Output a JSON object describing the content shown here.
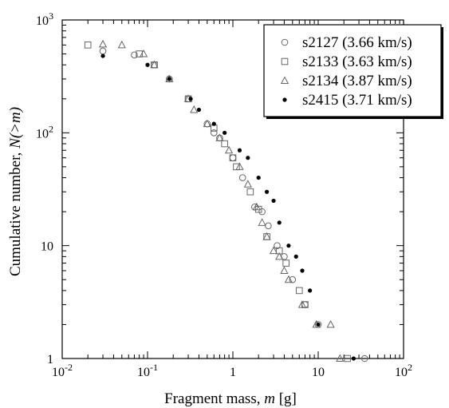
{
  "chart_data": {
    "type": "scatter",
    "xlabel": {
      "text": "Fragment mass, ",
      "var": "m",
      "unit": " [g]"
    },
    "ylabel": {
      "text": "Cumulative number, ",
      "var": "N(>m)"
    },
    "x_scale": "log",
    "y_scale": "log",
    "xlim": [
      0.01,
      100
    ],
    "ylim": [
      1,
      1000
    ],
    "x_ticks": [
      {
        "value": 0.01,
        "base": "10",
        "exp": "-2"
      },
      {
        "value": 0.1,
        "base": "10",
        "exp": "-1"
      },
      {
        "value": 1,
        "base": "1",
        "exp": ""
      },
      {
        "value": 10,
        "base": "10",
        "exp": ""
      },
      {
        "value": 100,
        "base": "10",
        "exp": "2"
      }
    ],
    "y_ticks": [
      {
        "value": 1,
        "base": "1",
        "exp": ""
      },
      {
        "value": 10,
        "base": "10",
        "exp": ""
      },
      {
        "value": 100,
        "base": "10",
        "exp": "2"
      },
      {
        "value": 1000,
        "base": "10",
        "exp": "3"
      }
    ],
    "grid": false,
    "legend_position": "top-right",
    "series": [
      {
        "name": "s2127 (3.66 km/s)",
        "marker": "circle-open",
        "points": [
          [
            0.03,
            530
          ],
          [
            0.07,
            490
          ],
          [
            0.12,
            400
          ],
          [
            0.18,
            300
          ],
          [
            0.3,
            200
          ],
          [
            0.5,
            120
          ],
          [
            0.6,
            100
          ],
          [
            0.7,
            90
          ],
          [
            1.0,
            60
          ],
          [
            1.3,
            40
          ],
          [
            1.8,
            22
          ],
          [
            2.2,
            20
          ],
          [
            2.6,
            15
          ],
          [
            3.3,
            10
          ],
          [
            4.0,
            8
          ],
          [
            5.0,
            5
          ],
          [
            7.0,
            3
          ],
          [
            10,
            2
          ],
          [
            35,
            1
          ]
        ]
      },
      {
        "name": "s2133 (3.63 km/s)",
        "marker": "square-open",
        "points": [
          [
            0.02,
            600
          ],
          [
            0.08,
            500
          ],
          [
            0.12,
            400
          ],
          [
            0.3,
            200
          ],
          [
            0.6,
            110
          ],
          [
            0.8,
            80
          ],
          [
            1.0,
            60
          ],
          [
            1.1,
            50
          ],
          [
            1.6,
            30
          ],
          [
            2.0,
            21
          ],
          [
            2.5,
            12
          ],
          [
            3.5,
            9
          ],
          [
            4.2,
            7
          ],
          [
            6.0,
            4
          ],
          [
            7.0,
            3
          ],
          [
            22,
            1
          ]
        ]
      },
      {
        "name": "s2134 (3.87 km/s)",
        "marker": "triangle-open",
        "points": [
          [
            0.03,
            610
          ],
          [
            0.05,
            600
          ],
          [
            0.09,
            500
          ],
          [
            0.12,
            400
          ],
          [
            0.18,
            300
          ],
          [
            0.3,
            200
          ],
          [
            0.35,
            160
          ],
          [
            0.5,
            120
          ],
          [
            0.7,
            90
          ],
          [
            0.9,
            70
          ],
          [
            1.2,
            50
          ],
          [
            1.5,
            35
          ],
          [
            1.9,
            22
          ],
          [
            2.2,
            16
          ],
          [
            2.5,
            12
          ],
          [
            3.0,
            9
          ],
          [
            3.5,
            8
          ],
          [
            4.0,
            6
          ],
          [
            4.5,
            5
          ],
          [
            6.5,
            3
          ],
          [
            9.5,
            2
          ],
          [
            14,
            2
          ],
          [
            18,
            1
          ]
        ]
      },
      {
        "name": "s2415 (3.71 km/s)",
        "marker": "filled-dot",
        "points": [
          [
            0.03,
            480
          ],
          [
            0.1,
            400
          ],
          [
            0.18,
            300
          ],
          [
            0.32,
            200
          ],
          [
            0.4,
            160
          ],
          [
            0.6,
            120
          ],
          [
            0.8,
            100
          ],
          [
            1.2,
            70
          ],
          [
            1.5,
            60
          ],
          [
            2.0,
            40
          ],
          [
            2.5,
            30
          ],
          [
            3.0,
            25
          ],
          [
            3.5,
            16
          ],
          [
            4.5,
            10
          ],
          [
            5.5,
            8
          ],
          [
            6.5,
            6
          ],
          [
            8.0,
            4
          ],
          [
            10,
            2
          ],
          [
            26,
            1
          ]
        ]
      }
    ]
  }
}
